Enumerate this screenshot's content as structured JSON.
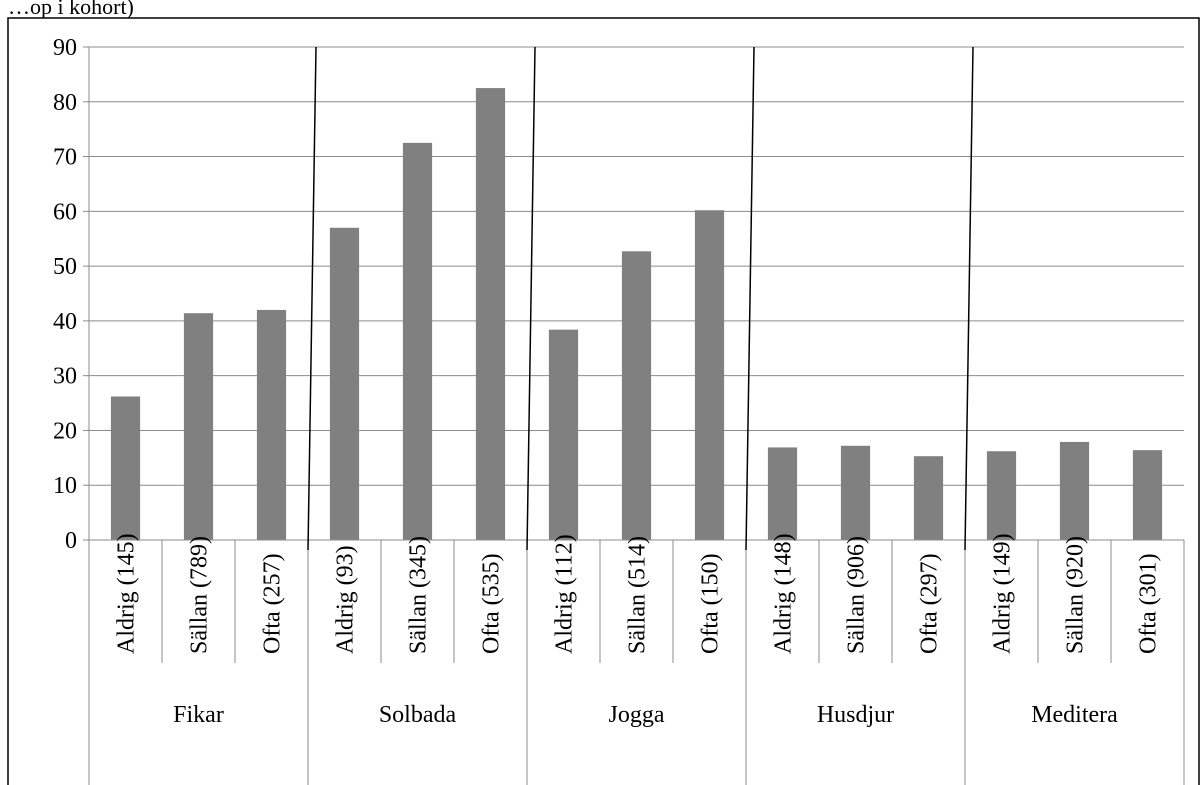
{
  "header": {
    "fragment": "…op i kohort)"
  },
  "chart_data": {
    "type": "bar",
    "title": "",
    "xlabel": "",
    "ylabel": "",
    "ylim": [
      0,
      90
    ],
    "yticks": [
      0,
      10,
      20,
      30,
      40,
      50,
      60,
      70,
      80,
      90
    ],
    "grid": true,
    "bar_color": "#808080",
    "groups": [
      {
        "name": "Fikar",
        "categories": [
          "Aldrig (145)",
          "Sällan (789)",
          "Ofta (257)"
        ],
        "values": [
          26.2,
          41.4,
          42.0
        ]
      },
      {
        "name": "Solbada",
        "categories": [
          "Aldrig (93)",
          "Sällan (345)",
          "Ofta (535)"
        ],
        "values": [
          57.0,
          72.5,
          82.5
        ]
      },
      {
        "name": "Jogga",
        "categories": [
          "Aldrig (112)",
          "Sällan (514)",
          "Ofta (150)"
        ],
        "values": [
          38.4,
          52.7,
          60.2
        ]
      },
      {
        "name": "Husdjur",
        "categories": [
          "Aldrig (148)",
          "Sällan (906)",
          "Ofta (297)"
        ],
        "values": [
          16.9,
          17.2,
          15.3
        ]
      },
      {
        "name": "Meditera",
        "categories": [
          "Aldrig (149)",
          "Sällan (920)",
          "Ofta (301)"
        ],
        "values": [
          16.2,
          17.9,
          16.4
        ]
      }
    ]
  }
}
